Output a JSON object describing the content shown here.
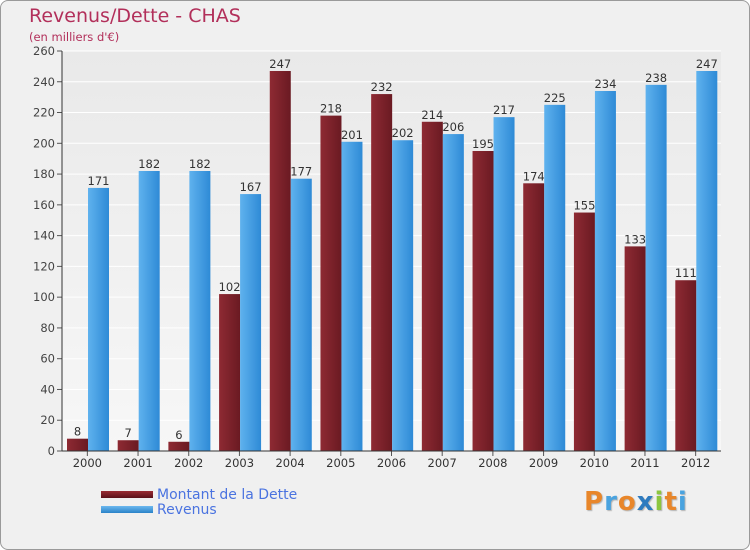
{
  "chart_data": {
    "type": "bar",
    "title": "Revenus/Dette - CHAS",
    "subtitle": "(en milliers d'€)",
    "categories": [
      "2000",
      "2001",
      "2002",
      "2003",
      "2004",
      "2005",
      "2006",
      "2007",
      "2008",
      "2009",
      "2010",
      "2011",
      "2012"
    ],
    "series": [
      {
        "name": "Montant de la Dette",
        "color": "#7a2028",
        "values": [
          8,
          7,
          6,
          102,
          247,
          218,
          232,
          214,
          195,
          174,
          155,
          133,
          111
        ]
      },
      {
        "name": "Revenus",
        "color": "#3d9be3",
        "values": [
          171,
          182,
          182,
          167,
          177,
          201,
          202,
          206,
          217,
          225,
          234,
          238,
          247
        ]
      }
    ],
    "ylim": [
      0,
      260
    ],
    "yticks": [
      0,
      20,
      40,
      60,
      80,
      100,
      120,
      140,
      160,
      180,
      200,
      220,
      240,
      260
    ],
    "grid": true,
    "legend_position": "bottom-left",
    "data_labels": true
  },
  "brand": {
    "letters": [
      "P",
      "r",
      "o",
      "x",
      "i",
      "t",
      "i"
    ],
    "colors": [
      "#e8862a",
      "#4aa3df",
      "#e8862a",
      "#2e7bbf",
      "#8cc63f",
      "#e8862a",
      "#4aa3df"
    ]
  }
}
